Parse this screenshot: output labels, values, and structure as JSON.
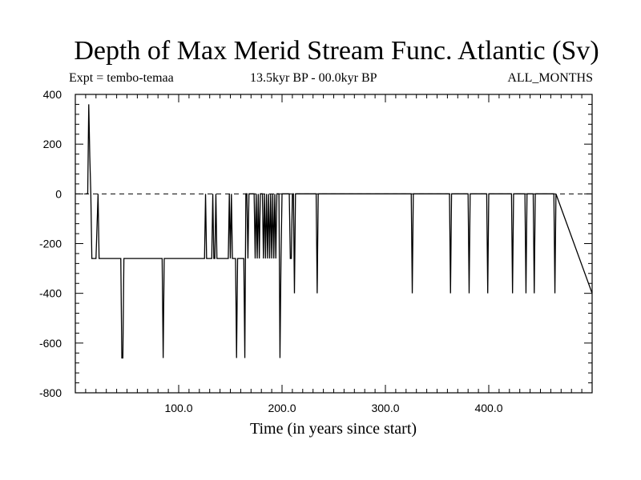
{
  "chart_data": {
    "type": "line",
    "title": "Depth of Max Merid Stream Func. Atlantic (Sv)",
    "subtitle_left": "Expt = tembo-temaa",
    "subtitle_center": "13.5kyr BP - 00.0kyr BP",
    "subtitle_right": "ALL_MONTHS",
    "xlabel": "Time (in years since start)",
    "ylabel": "",
    "xlim": [
      0,
      500
    ],
    "ylim": [
      -800,
      400
    ],
    "xticks": [
      100,
      200,
      300,
      400
    ],
    "xtick_labels": [
      "100.0",
      "200.0",
      "300.0",
      "400.0"
    ],
    "yticks": [
      -800,
      -600,
      -400,
      -200,
      0,
      200,
      400
    ],
    "ytick_labels": [
      "-800",
      "-600",
      "-400",
      "-200",
      "0",
      "200",
      "400"
    ],
    "zero_line": "dashed",
    "grid": false,
    "series": [
      {
        "x": [
          10,
          12,
          13,
          14,
          15,
          16,
          18,
          20,
          22,
          23,
          25,
          44,
          45,
          46,
          47,
          48,
          49,
          84,
          85,
          86,
          125,
          126,
          127,
          132,
          133,
          134,
          135,
          136,
          137,
          148,
          149,
          150,
          151,
          152,
          153,
          155,
          156,
          157,
          158,
          163,
          164,
          165,
          166,
          167,
          168,
          170,
          173,
          174,
          175,
          176,
          177,
          178,
          179,
          181,
          182,
          183,
          184,
          185,
          186,
          187,
          188,
          189,
          190,
          191,
          192,
          193,
          194,
          195,
          197,
          198,
          199,
          200,
          207,
          208,
          209,
          210,
          211,
          212,
          213,
          214,
          233,
          234,
          235,
          325,
          326,
          327,
          362,
          363,
          364,
          380,
          381,
          382,
          398,
          399,
          400,
          422,
          423,
          424,
          435,
          436,
          437,
          443,
          444,
          445,
          463,
          464,
          465,
          500
        ],
        "y": [
          0,
          0,
          360,
          150,
          0,
          -260,
          -260,
          -260,
          0,
          -260,
          -260,
          -260,
          -660,
          -660,
          -260,
          -260,
          -260,
          -260,
          -660,
          -260,
          -260,
          0,
          -260,
          -260,
          0,
          -260,
          -260,
          0,
          -260,
          -260,
          0,
          -260,
          0,
          -260,
          -260,
          -260,
          -660,
          -260,
          -260,
          -260,
          -660,
          0,
          0,
          -260,
          0,
          0,
          0,
          -260,
          0,
          -260,
          0,
          -260,
          0,
          0,
          -260,
          0,
          -260,
          0,
          -260,
          0,
          -260,
          0,
          -260,
          0,
          -260,
          0,
          -260,
          0,
          0,
          -660,
          -260,
          0,
          0,
          -260,
          -260,
          0,
          0,
          -400,
          0,
          0,
          0,
          -400,
          0,
          0,
          -400,
          0,
          0,
          -400,
          0,
          0,
          -400,
          0,
          0,
          -400,
          0,
          0,
          -400,
          0,
          0,
          -400,
          0,
          0,
          -400,
          0,
          0,
          -400,
          0,
          -400
        ]
      }
    ]
  }
}
